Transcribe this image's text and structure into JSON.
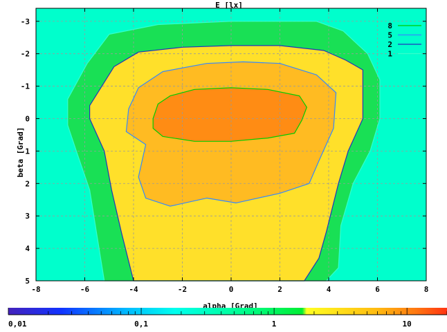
{
  "chart_data": {
    "type": "heatmap",
    "title": "E [lx]",
    "xlabel": "alpha [Grad]",
    "ylabel": "beta [Grad]",
    "xlim": [
      -8,
      8
    ],
    "ylim": [
      -3.4,
      5
    ],
    "y_inverted": true,
    "x_ticks": [
      -8,
      -6,
      -4,
      -2,
      0,
      2,
      4,
      6,
      8
    ],
    "y_ticks": [
      -3,
      -2,
      -1,
      0,
      1,
      2,
      3,
      4,
      5
    ],
    "grid": true,
    "legend_position": "top-right",
    "contours": [
      {
        "name": "8",
        "color": "#00cc00",
        "points": [
          [
            -3.2,
            0.0
          ],
          [
            -3.0,
            -0.45
          ],
          [
            -2.5,
            -0.7
          ],
          [
            -1.5,
            -0.9
          ],
          [
            0,
            -0.95
          ],
          [
            1.5,
            -0.9
          ],
          [
            2.8,
            -0.7
          ],
          [
            3.1,
            -0.35
          ],
          [
            2.9,
            0.05
          ],
          [
            2.6,
            0.45
          ],
          [
            1.5,
            0.6
          ],
          [
            0,
            0.7
          ],
          [
            -1.5,
            0.7
          ],
          [
            -2.8,
            0.55
          ],
          [
            -3.2,
            0.3
          ]
        ]
      },
      {
        "name": "5",
        "color": "#3388ff",
        "points": [
          [
            -4.2,
            -0.3
          ],
          [
            -3.8,
            -0.95
          ],
          [
            -2.8,
            -1.45
          ],
          [
            -1.0,
            -1.7
          ],
          [
            0.5,
            -1.75
          ],
          [
            2.0,
            -1.7
          ],
          [
            3.5,
            -1.35
          ],
          [
            4.3,
            -0.8
          ],
          [
            4.2,
            0.3
          ],
          [
            3.6,
            1.3
          ],
          [
            3.2,
            2.0
          ],
          [
            2.0,
            2.3
          ],
          [
            0.2,
            2.6
          ],
          [
            -1.0,
            2.45
          ],
          [
            -2.5,
            2.7
          ],
          [
            -3.5,
            2.45
          ],
          [
            -3.8,
            1.8
          ],
          [
            -3.5,
            0.8
          ],
          [
            -4.3,
            0.4
          ]
        ]
      },
      {
        "name": "2",
        "color": "#2233bb",
        "points": [
          [
            -5.8,
            -0.4
          ],
          [
            -4.8,
            -1.6
          ],
          [
            -3.8,
            -2.05
          ],
          [
            -2.0,
            -2.2
          ],
          [
            0,
            -2.25
          ],
          [
            2.0,
            -2.25
          ],
          [
            3.8,
            -2.1
          ],
          [
            4.7,
            -1.8
          ],
          [
            5.4,
            -1.5
          ],
          [
            5.4,
            0.0
          ],
          [
            4.8,
            1.0
          ],
          [
            4.4,
            2.0
          ],
          [
            3.9,
            3.5
          ],
          [
            3.6,
            4.3
          ],
          [
            3.0,
            5.0
          ],
          [
            -4.0,
            5.0
          ],
          [
            -4.5,
            3.5
          ],
          [
            -4.9,
            2.2
          ],
          [
            -5.2,
            1.0
          ],
          [
            -5.8,
            0.0
          ]
        ]
      },
      {
        "name": "1",
        "color": "#33ffcc",
        "points": [
          [
            -6.7,
            -0.6
          ],
          [
            -5.9,
            -1.7
          ],
          [
            -5.0,
            -2.6
          ],
          [
            -3.0,
            -2.9
          ],
          [
            0,
            -3.0
          ],
          [
            3.5,
            -3.0
          ],
          [
            4.6,
            -2.7
          ],
          [
            5.6,
            -2.0
          ],
          [
            6.1,
            -1.2
          ],
          [
            6.1,
            0.0
          ],
          [
            5.7,
            1.0
          ],
          [
            5.0,
            2.0
          ],
          [
            4.5,
            3.3
          ],
          [
            4.4,
            4.6
          ],
          [
            3.9,
            5.0
          ],
          [
            -5.2,
            5.0
          ],
          [
            -5.5,
            3.6
          ],
          [
            -5.8,
            2.2
          ],
          [
            -6.3,
            1.1
          ],
          [
            -6.7,
            0.2
          ]
        ]
      }
    ],
    "colorbar": {
      "scale": "log",
      "range": [
        0.01,
        20
      ],
      "tick_labels": [
        "0,01",
        "0,1",
        "1",
        "10"
      ],
      "tick_values": [
        0.01,
        0.1,
        1,
        10
      ]
    }
  }
}
